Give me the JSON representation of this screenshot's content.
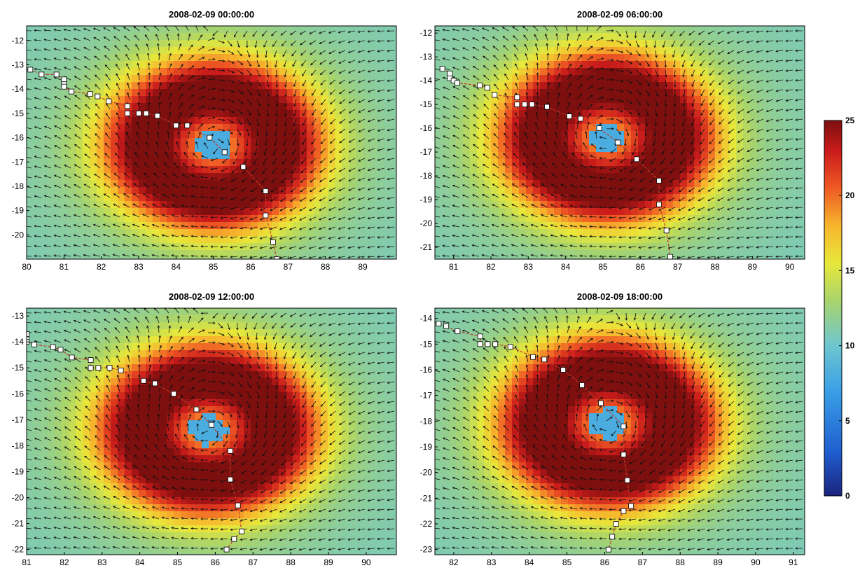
{
  "colors": {
    "colormap": [
      "#1a237e",
      "#1f5fd0",
      "#3aa0e6",
      "#4fb7e3",
      "#7cc7b8",
      "#a8d46c",
      "#e8e83a",
      "#f7b52d",
      "#ef5a24",
      "#c91b1b",
      "#7d0f0f"
    ],
    "track_line": "#c0392b",
    "track_marker_fill": "#ffffff",
    "arrow": "#111111"
  },
  "chart_data": [
    {
      "type": "heatmap",
      "title": "2008-02-09 00:00:00",
      "x_ticks": [
        "80",
        "81",
        "82",
        "83",
        "84",
        "85",
        "86",
        "87",
        "88",
        "89"
      ],
      "y_ticks": [
        "-12",
        "-13",
        "-14",
        "-15",
        "-16",
        "-17",
        "-18",
        "-19",
        "-20"
      ],
      "xlim": [
        80,
        89.9
      ],
      "ylim": [
        -21,
        -11.4
      ],
      "center": {
        "lon": 85.0,
        "lat": -16.3
      },
      "track": [
        [
          80.1,
          -13.2
        ],
        [
          80.4,
          -13.4
        ],
        [
          80.8,
          -13.4
        ],
        [
          81.0,
          -13.6
        ],
        [
          81.0,
          -13.8
        ],
        [
          81.0,
          -13.9
        ],
        [
          81.2,
          -14.1
        ],
        [
          81.7,
          -14.2
        ],
        [
          81.9,
          -14.3
        ],
        [
          82.2,
          -14.5
        ],
        [
          82.7,
          -14.7
        ],
        [
          82.7,
          -15.0
        ],
        [
          83.0,
          -15.0
        ],
        [
          83.2,
          -15.0
        ],
        [
          83.5,
          -15.1
        ],
        [
          84.0,
          -15.5
        ],
        [
          84.3,
          -15.5
        ],
        [
          84.9,
          -16.0
        ],
        [
          85.3,
          -16.6
        ],
        [
          85.8,
          -17.2
        ],
        [
          86.4,
          -18.2
        ],
        [
          86.4,
          -19.2
        ],
        [
          86.6,
          -20.3
        ],
        [
          86.7,
          -21
        ]
      ]
    },
    {
      "type": "heatmap",
      "title": "2008-02-09 06:00:00",
      "x_ticks": [
        "81",
        "82",
        "83",
        "84",
        "85",
        "86",
        "87",
        "88",
        "89",
        "90"
      ],
      "y_ticks": [
        "-12",
        "-13",
        "-14",
        "-15",
        "-16",
        "-17",
        "-18",
        "-19",
        "-20",
        "-21"
      ],
      "xlim": [
        80.5,
        90.4
      ],
      "ylim": [
        -21.5,
        -11.7
      ],
      "center": {
        "lon": 85.1,
        "lat": -16.4
      },
      "track": [
        [
          80.7,
          -13.5
        ],
        [
          80.9,
          -13.7
        ],
        [
          80.9,
          -13.9
        ],
        [
          81.0,
          -14.0
        ],
        [
          81.1,
          -14.1
        ],
        [
          81.7,
          -14.2
        ],
        [
          81.9,
          -14.3
        ],
        [
          82.1,
          -14.6
        ],
        [
          82.7,
          -14.7
        ],
        [
          82.7,
          -15.0
        ],
        [
          82.9,
          -15.0
        ],
        [
          83.1,
          -15.0
        ],
        [
          83.5,
          -15.1
        ],
        [
          84.1,
          -15.5
        ],
        [
          84.4,
          -15.6
        ],
        [
          84.9,
          -16.0
        ],
        [
          85.4,
          -16.6
        ],
        [
          85.9,
          -17.3
        ],
        [
          86.5,
          -18.2
        ],
        [
          86.5,
          -19.2
        ],
        [
          86.7,
          -20.3
        ],
        [
          86.8,
          -21.4
        ]
      ]
    },
    {
      "type": "heatmap",
      "title": "2008-02-09 12:00:00",
      "x_ticks": [
        "81",
        "82",
        "83",
        "84",
        "85",
        "86",
        "87",
        "88",
        "89",
        "90"
      ],
      "y_ticks": [
        "-13",
        "-14",
        "-15",
        "-16",
        "-17",
        "-18",
        "-19",
        "-20",
        "-21",
        "-22"
      ],
      "xlim": [
        81,
        90.8
      ],
      "ylim": [
        -22.2,
        -12.7
      ],
      "center": {
        "lon": 85.8,
        "lat": -17.4
      },
      "track": [
        [
          81.0,
          -13.7
        ],
        [
          81.0,
          -13.9
        ],
        [
          81.0,
          -14.0
        ],
        [
          81.2,
          -14.1
        ],
        [
          81.7,
          -14.2
        ],
        [
          81.9,
          -14.3
        ],
        [
          82.2,
          -14.6
        ],
        [
          82.7,
          -14.7
        ],
        [
          82.7,
          -15.0
        ],
        [
          82.9,
          -15.0
        ],
        [
          83.2,
          -15.0
        ],
        [
          83.5,
          -15.1
        ],
        [
          84.1,
          -15.5
        ],
        [
          84.4,
          -15.6
        ],
        [
          84.9,
          -16.0
        ],
        [
          85.5,
          -16.6
        ],
        [
          85.9,
          -17.2
        ],
        [
          86.4,
          -18.2
        ],
        [
          86.4,
          -19.3
        ],
        [
          86.6,
          -20.3
        ],
        [
          86.7,
          -21.3
        ],
        [
          86.5,
          -21.6
        ],
        [
          86.3,
          -22
        ]
      ]
    },
    {
      "type": "heatmap",
      "title": "2008-02-09 18:00:00",
      "x_ticks": [
        "82",
        "83",
        "84",
        "85",
        "86",
        "87",
        "88",
        "89",
        "90",
        "91"
      ],
      "y_ticks": [
        "-14",
        "-15",
        "-16",
        "-17",
        "-18",
        "-19",
        "-20",
        "-21",
        "-22",
        "-23"
      ],
      "xlim": [
        81.5,
        91.3
      ],
      "ylim": [
        -23.2,
        -13.6
      ],
      "center": {
        "lon": 86.1,
        "lat": -18.1
      },
      "track": [
        [
          81.6,
          -14.2
        ],
        [
          81.8,
          -14.3
        ],
        [
          82.1,
          -14.5
        ],
        [
          82.7,
          -14.7
        ],
        [
          82.7,
          -15.0
        ],
        [
          82.9,
          -15.0
        ],
        [
          83.1,
          -15.0
        ],
        [
          83.5,
          -15.1
        ],
        [
          84.1,
          -15.5
        ],
        [
          84.4,
          -15.6
        ],
        [
          84.9,
          -16.0
        ],
        [
          85.4,
          -16.6
        ],
        [
          85.9,
          -17.3
        ],
        [
          86.5,
          -18.2
        ],
        [
          86.5,
          -19.3
        ],
        [
          86.6,
          -20.3
        ],
        [
          86.7,
          -21.3
        ],
        [
          86.5,
          -21.5
        ],
        [
          86.3,
          -22.0
        ],
        [
          86.2,
          -22.5
        ],
        [
          86.1,
          -23.0
        ]
      ]
    }
  ],
  "colorbar": {
    "ticks": [
      "25",
      "20",
      "15",
      "10",
      "5",
      "0"
    ],
    "min": 0,
    "max": 25
  }
}
